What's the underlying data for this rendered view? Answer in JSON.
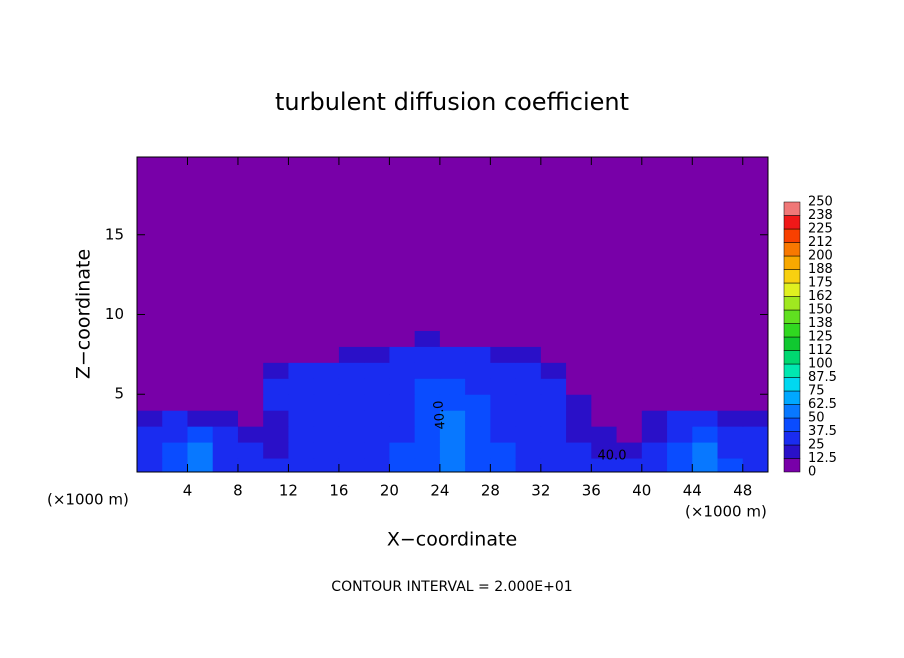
{
  "chart_data": {
    "type": "heatmap",
    "title": "turbulent diffusion coefficient",
    "x_label": "X−coordinate",
    "y_label": "Z−coordinate",
    "x_unit": "(×1000 m)",
    "footer": "CONTOUR INTERVAL = 2.000E+01",
    "annotations": [
      "40.0",
      "40.0"
    ],
    "xlim": [
      0,
      50
    ],
    "ylim": [
      0.125,
      19.875
    ],
    "xticks": [
      4,
      8,
      12,
      16,
      20,
      24,
      28,
      32,
      36,
      40,
      44,
      48
    ],
    "yticks": [
      5,
      10,
      15
    ],
    "grid_x": [
      0,
      2,
      4,
      6,
      8,
      10,
      12,
      14,
      16,
      18,
      20,
      22,
      24,
      26,
      28,
      30,
      32,
      34,
      36,
      38,
      40,
      42,
      44,
      46,
      48,
      50
    ],
    "grid_y": [
      0.125,
      1,
      2,
      3,
      4,
      5,
      6,
      7,
      8,
      9,
      10,
      19.875
    ],
    "values": [
      [
        30,
        45,
        60,
        35,
        30,
        25,
        30,
        28,
        30,
        35,
        40,
        45,
        50,
        45,
        40,
        35,
        30,
        30,
        28,
        25,
        30,
        45,
        60,
        40,
        35
      ],
      [
        30,
        40,
        50,
        30,
        25,
        20,
        30,
        25,
        35,
        30,
        40,
        45,
        55,
        45,
        40,
        30,
        25,
        25,
        20,
        20,
        25,
        40,
        55,
        35,
        30
      ],
      [
        25,
        35,
        40,
        25,
        20,
        15,
        25,
        30,
        30,
        25,
        35,
        40,
        50,
        45,
        35,
        30,
        25,
        20,
        15,
        12,
        20,
        35,
        40,
        30,
        25
      ],
      [
        20,
        25,
        20,
        15,
        10,
        20,
        30,
        25,
        35,
        30,
        30,
        40,
        50,
        40,
        30,
        30,
        25,
        15,
        10,
        8,
        15,
        25,
        25,
        20,
        20
      ],
      [
        10,
        10,
        8,
        5,
        5,
        25,
        30,
        30,
        30,
        30,
        35,
        40,
        45,
        40,
        30,
        30,
        25,
        15,
        5,
        3,
        5,
        10,
        10,
        10,
        10
      ],
      [
        5,
        5,
        3,
        2,
        2,
        25,
        28,
        28,
        28,
        30,
        35,
        40,
        40,
        35,
        30,
        28,
        25,
        10,
        2,
        0,
        2,
        5,
        5,
        5,
        5
      ],
      [
        0,
        0,
        0,
        0,
        0,
        15,
        25,
        25,
        25,
        28,
        30,
        35,
        35,
        30,
        28,
        25,
        20,
        5,
        0,
        0,
        0,
        0,
        0,
        0,
        0
      ],
      [
        0,
        0,
        0,
        0,
        0,
        0,
        5,
        10,
        15,
        20,
        25,
        30,
        30,
        25,
        20,
        15,
        5,
        0,
        0,
        0,
        0,
        0,
        0,
        0,
        0
      ],
      [
        0,
        0,
        0,
        0,
        0,
        0,
        0,
        0,
        0,
        0,
        10,
        15,
        12,
        5,
        0,
        0,
        0,
        0,
        0,
        0,
        0,
        0,
        0,
        0,
        0
      ],
      [
        0,
        0,
        0,
        0,
        0,
        0,
        0,
        0,
        0,
        0,
        0,
        0,
        0,
        0,
        0,
        0,
        0,
        0,
        0,
        0,
        0,
        0,
        0,
        0,
        0
      ],
      [
        0,
        0,
        0,
        0,
        0,
        0,
        0,
        0,
        0,
        0,
        0,
        0,
        0,
        0,
        0,
        0,
        0,
        0,
        0,
        0,
        0,
        0,
        0,
        0,
        0
      ]
    ],
    "colorbar": {
      "levels": [
        0,
        12.5,
        25,
        37.5,
        50,
        62.5,
        75,
        87.5,
        100,
        {
          "value": 112.5,
          "label": "112"
        },
        125,
        {
          "value": 137.5,
          "label": "138"
        },
        150,
        {
          "value": 162.5,
          "label": "162"
        },
        175,
        {
          "value": 187.5,
          "label": "188"
        },
        200,
        {
          "value": 212.5,
          "label": "212"
        },
        225,
        {
          "value": 237.5,
          "label": "238"
        },
        250
      ],
      "colors": [
        "#7800a8",
        "#2a10c8",
        "#1a2cf0",
        "#0a4cff",
        "#0878ff",
        "#00a8ff",
        "#00d8f0",
        "#00e8b0",
        "#00d870",
        "#10c830",
        "#30d820",
        "#60e020",
        "#a0e820",
        "#e0f020",
        "#f8d010",
        "#f8a800",
        "#f87800",
        "#f84000",
        "#f01818",
        "#f07878"
      ]
    }
  }
}
